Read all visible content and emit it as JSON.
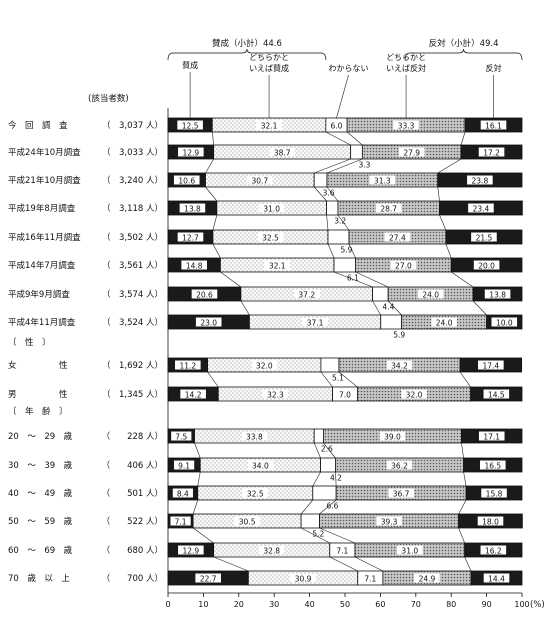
{
  "chart_data": {
    "type": "bar",
    "orientation": "horizontal",
    "stacked": true,
    "xlim": [
      0,
      100
    ],
    "xticks": [
      "0",
      "10",
      "20",
      "30",
      "40",
      "50",
      "60",
      "70",
      "80",
      "90",
      "100"
    ],
    "x_unit": "(%)",
    "count_header": "(該当者数)",
    "group_labels": {
      "sex": "〔　性　〕",
      "age": "〔　年　齢　〕"
    },
    "brackets": {
      "approve_total": "賛成（小計）44.6",
      "oppose_total": "反対（小計）49.4"
    },
    "legend": [
      {
        "key": "approve",
        "label": "賛成"
      },
      {
        "key": "somewhat_approve",
        "label": "どちらかと\nいえば賛成"
      },
      {
        "key": "dont_know",
        "label": "わからない"
      },
      {
        "key": "somewhat_oppose",
        "label": "どちらかと\nいえば反対"
      },
      {
        "key": "oppose",
        "label": "反対"
      }
    ],
    "series_colors": {
      "approve": "#1a1a1a",
      "somewhat_approve": "#f2f2f2",
      "dont_know": "#ffffff",
      "somewhat_oppose": "#bdbdbd",
      "oppose": "#1a1a1a"
    },
    "rows": [
      {
        "label": "今　回　調　査",
        "n": "（　3,037 人）",
        "values": [
          12.5,
          32.1,
          6.0,
          33.3,
          16.1
        ],
        "dk_label": "6.0",
        "dk_pos": "inside"
      },
      {
        "label": "平成24年10月調査",
        "n": "（　3,033 人）",
        "values": [
          12.9,
          38.7,
          3.3,
          27.9,
          17.2
        ],
        "dk_label": "3.3",
        "dk_pos": "below"
      },
      {
        "label": "平成21年10月調査",
        "n": "（　3,240 人）",
        "values": [
          10.6,
          30.7,
          3.6,
          31.3,
          23.8
        ],
        "dk_label": "3.6",
        "dk_pos": "below"
      },
      {
        "label": "平成19年8月調査",
        "n": "（　3,118 人）",
        "values": [
          13.8,
          31.0,
          3.2,
          28.7,
          23.4
        ],
        "dk_label": "3.2",
        "dk_pos": "below"
      },
      {
        "label": "平成16年11月調査",
        "n": "（　3,502 人）",
        "values": [
          12.7,
          32.5,
          5.9,
          27.4,
          21.5
        ],
        "dk_label": "5.9",
        "dk_pos": "below"
      },
      {
        "label": "平成14年7月調査",
        "n": "（　3,561 人）",
        "values": [
          14.8,
          32.1,
          6.1,
          27.0,
          20.0
        ],
        "dk_label": "6.1",
        "dk_pos": "below"
      },
      {
        "label": "平成9年9月調査",
        "n": "（　3,574 人）",
        "values": [
          20.6,
          37.2,
          4.4,
          24.0,
          13.8
        ],
        "dk_label": "4.4",
        "dk_pos": "below"
      },
      {
        "label": "平成4年11月調査",
        "n": "（　3,524 人）",
        "values": [
          23.0,
          37.1,
          5.9,
          24.0,
          10.0
        ],
        "dk_label": "5.9",
        "dk_pos": "below"
      },
      {
        "label": "女　　　　　性",
        "n": "（　1,692 人）",
        "values": [
          11.2,
          32.0,
          5.1,
          34.2,
          17.4
        ],
        "dk_label": "5.1",
        "dk_pos": "below"
      },
      {
        "label": "男　　　　　性",
        "n": "（　1,345 人）",
        "values": [
          14.2,
          32.3,
          7.0,
          32.0,
          14.5
        ],
        "dk_label": "7.0",
        "dk_pos": "inside"
      },
      {
        "label": "20　～　29　歳",
        "n": "（　　228 人）",
        "values": [
          7.5,
          33.8,
          2.6,
          39.0,
          17.1
        ],
        "dk_label": "2.6",
        "dk_pos": "below"
      },
      {
        "label": "30　～　39　歳",
        "n": "（　　406 人）",
        "values": [
          9.1,
          34.0,
          4.2,
          36.2,
          16.5
        ],
        "dk_label": "4.2",
        "dk_pos": "below"
      },
      {
        "label": "40　～　49　歳",
        "n": "（　　501 人）",
        "values": [
          8.4,
          32.5,
          6.6,
          36.7,
          15.8
        ],
        "dk_label": "6.6",
        "dk_pos": "below"
      },
      {
        "label": "50　～　59　歳",
        "n": "（　　522 人）",
        "values": [
          7.1,
          30.5,
          5.2,
          39.3,
          18.0
        ],
        "dk_label": "5.2",
        "dk_pos": "below"
      },
      {
        "label": "60　～　69　歳",
        "n": "（　　680 人）",
        "values": [
          12.9,
          32.8,
          7.1,
          31.0,
          16.2
        ],
        "dk_label": "7.1",
        "dk_pos": "inside"
      },
      {
        "label": "70　歳　以　上",
        "n": "（　　700 人）",
        "values": [
          22.7,
          30.9,
          7.1,
          24.9,
          14.4
        ],
        "dk_label": "7.1",
        "dk_pos": "inside"
      }
    ]
  }
}
